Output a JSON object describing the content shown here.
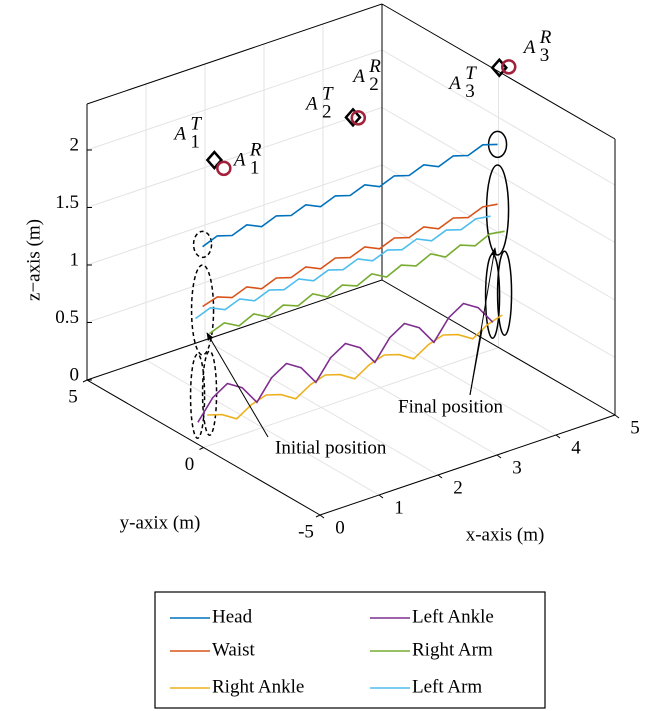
{
  "chart_data": {
    "type": "line3d",
    "xlabel": "x-axis (m)",
    "ylabel": "y-axix (m)",
    "zlabel": "z−axis (m)",
    "xlim": [
      0,
      5
    ],
    "ylim": [
      -5,
      5
    ],
    "zlim": [
      0,
      2.4
    ],
    "xticks": [
      0,
      1,
      2,
      3,
      4,
      5
    ],
    "yticks": [
      -5,
      0,
      5
    ],
    "zticks": [
      0,
      0.5,
      1,
      1.5,
      2
    ],
    "grid": true,
    "legend": "bottom",
    "x": [
      0.3,
      0.55,
      0.8,
      1.05,
      1.3,
      1.55,
      1.8,
      2.05,
      2.3,
      2.55,
      2.8,
      3.05,
      3.3,
      3.55,
      3.8,
      4.05,
      4.3,
      4.55,
      4.8,
      5.05,
      5.3
    ],
    "series": [
      {
        "name": "Head",
        "color": "#0072bd",
        "y": 0.8,
        "values": [
          1.6,
          1.65,
          1.61,
          1.66,
          1.6,
          1.65,
          1.61,
          1.66,
          1.6,
          1.65,
          1.61,
          1.66,
          1.6,
          1.65,
          1.61,
          1.66,
          1.6,
          1.65,
          1.61,
          1.66,
          1.62
        ]
      },
      {
        "name": "Waist",
        "color": "#d95319",
        "y": 0.8,
        "values": [
          1.08,
          1.12,
          1.07,
          1.12,
          1.06,
          1.11,
          1.07,
          1.12,
          1.06,
          1.11,
          1.07,
          1.12,
          1.06,
          1.11,
          1.07,
          1.12,
          1.06,
          1.11,
          1.07,
          1.12,
          1.1
        ]
      },
      {
        "name": "Right Ankle",
        "color": "#edb120",
        "y": 0.6,
        "values": [
          0.16,
          0.12,
          0.04,
          0.12,
          0.16,
          0.12,
          0.04,
          0.12,
          0.16,
          0.12,
          0.04,
          0.12,
          0.16,
          0.12,
          0.04,
          0.12,
          0.16,
          0.12,
          0.04,
          0.12,
          0.16
        ]
      },
      {
        "name": "Left Ankle",
        "color": "#7e2f8e",
        "y": 1.0,
        "values": [
          0.05,
          0.22,
          0.3,
          0.22,
          0.05,
          0.22,
          0.3,
          0.22,
          0.05,
          0.22,
          0.3,
          0.22,
          0.05,
          0.22,
          0.3,
          0.22,
          0.05,
          0.22,
          0.3,
          0.22,
          0.05
        ]
      },
      {
        "name": "Right Arm",
        "color": "#77ac30",
        "y": 0.5,
        "values": [
          0.88,
          0.93,
          0.86,
          0.92,
          0.85,
          0.91,
          0.86,
          0.92,
          0.85,
          0.91,
          0.86,
          0.92,
          0.85,
          0.91,
          0.86,
          0.92,
          0.85,
          0.91,
          0.86,
          0.92,
          0.9
        ]
      },
      {
        "name": "Left Arm",
        "color": "#4dbeee",
        "y": 1.1,
        "values": [
          0.94,
          0.99,
          0.93,
          0.98,
          0.92,
          0.97,
          0.93,
          0.98,
          0.92,
          0.97,
          0.93,
          0.98,
          0.92,
          0.97,
          0.93,
          0.98,
          0.92,
          0.97,
          0.93,
          0.98,
          0.96
        ]
      }
    ],
    "anchors": [
      {
        "transmitter": {
          "label": "A",
          "sub": "1",
          "sup": "T",
          "color": "#000000",
          "x": 0.54,
          "y": 0.9,
          "z": 2.3
        },
        "receiver": {
          "label": "A",
          "sub": "1",
          "sup": "R",
          "color": "#a3203a",
          "x": 0.7,
          "y": 0.9,
          "z": 2.2
        }
      },
      {
        "transmitter": {
          "label": "A",
          "sub": "2",
          "sup": "T",
          "color": "#000000",
          "x": 2.81,
          "y": 0.7,
          "z": 2.3
        },
        "receiver": {
          "label": "A",
          "sub": "2",
          "sup": "R",
          "color": "#a3203a",
          "x": 2.9,
          "y": 0.7,
          "z": 2.28
        }
      },
      {
        "transmitter": {
          "label": "A",
          "sub": "3",
          "sup": "T",
          "color": "#000000",
          "x": 5.29,
          "y": 0.7,
          "z": 2.3
        },
        "receiver": {
          "label": "A",
          "sub": "3",
          "sup": "R",
          "color": "#a3203a",
          "x": 5.45,
          "y": 0.7,
          "z": 2.28
        }
      }
    ],
    "annotations": [
      "Initial position",
      "Final position"
    ]
  }
}
